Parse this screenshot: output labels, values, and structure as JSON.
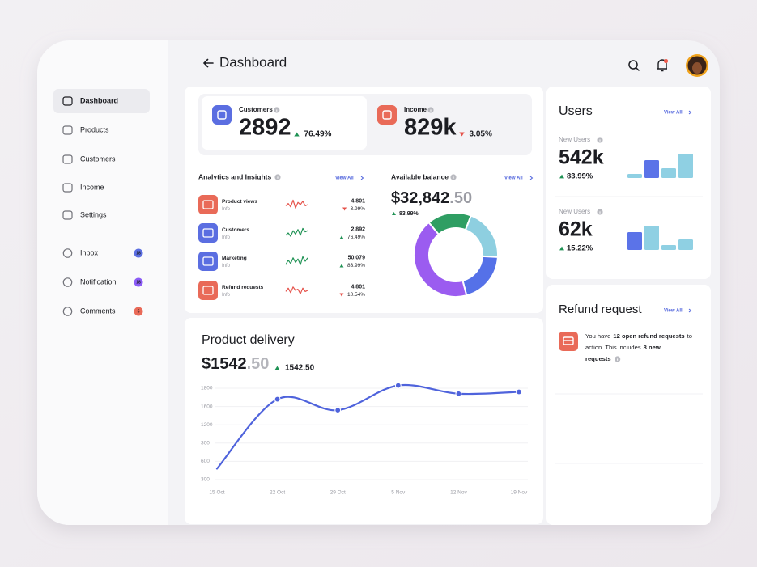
{
  "header": {
    "title": "Dashboard"
  },
  "sidebar": {
    "nav": [
      {
        "label": "Dashboard",
        "active": true
      },
      {
        "label": "Products"
      },
      {
        "label": "Customers"
      },
      {
        "label": "Income"
      },
      {
        "label": "Settings"
      }
    ],
    "messages": [
      {
        "label": "Inbox",
        "badge": 18,
        "color": "#5b6ee1"
      },
      {
        "label": "Notification",
        "badge": 18,
        "color": "#8b5cf6"
      },
      {
        "label": "Comments",
        "badge": 5,
        "color": "#e96a58"
      }
    ]
  },
  "kpis": [
    {
      "label": "Customers",
      "value": 2892,
      "change": "76.49%",
      "trend": "up",
      "color": "#5b6ee1"
    },
    {
      "label": "Income",
      "value": "829k",
      "change": "3.05%",
      "trend": "down",
      "color": "#e96a58"
    }
  ],
  "analytics": {
    "title": "Analytics and Insights",
    "link": "View All",
    "rows": [
      {
        "name": "Product views",
        "sub": "Info",
        "value": "4.801",
        "change": "3.99%",
        "trend": "down",
        "color": "#e96a58",
        "spark": [
          4,
          6,
          3,
          9,
          2,
          7,
          5,
          8,
          4,
          5
        ],
        "ylim": [
          0,
          10
        ]
      },
      {
        "name": "Customers",
        "sub": "Info",
        "value": "2.892",
        "change": "76.49%",
        "trend": "up",
        "color": "#5b6ee1",
        "spark": [
          3,
          5,
          2,
          7,
          4,
          8,
          3,
          9,
          6,
          7
        ],
        "ylim": [
          0,
          10
        ]
      },
      {
        "name": "Marketing",
        "sub": "Info",
        "value": "50.079",
        "change": "83.99%",
        "trend": "up",
        "color": "#5b6ee1",
        "spark": [
          2,
          6,
          3,
          8,
          4,
          7,
          2,
          9,
          5,
          8
        ],
        "ylim": [
          0,
          10
        ]
      },
      {
        "name": "Refund requests",
        "sub": "Info",
        "value": "4.801",
        "change": "10.54%",
        "trend": "down",
        "color": "#e96a58",
        "spark": [
          4,
          7,
          3,
          8,
          5,
          6,
          2,
          7,
          4,
          5
        ],
        "ylim": [
          0,
          10
        ]
      }
    ]
  },
  "balance": {
    "title": "Available balance",
    "link": "View All",
    "amount": "$32,842",
    "cents": ".50",
    "change": "83.99%",
    "trend": "up",
    "donut": {
      "type": "pie",
      "values": [
        17,
        20,
        20,
        43
      ],
      "colors": [
        "#2f9e63",
        "#8ecfe0",
        "#5571e8",
        "#9b5cf0"
      ]
    }
  },
  "users": {
    "title": "Users",
    "link": "View All",
    "groups": [
      {
        "label": "New Users",
        "value": "542k",
        "change": "83.99%",
        "trend": "up",
        "bars": [
          5,
          22,
          12,
          30
        ],
        "colors": [
          "#8fd0e3",
          "#5b73e8",
          "#8fd0e3",
          "#8fd0e3"
        ],
        "ylim": [
          0,
          30
        ]
      },
      {
        "label": "New Users",
        "value": "62k",
        "change": "15.22%",
        "trend": "up",
        "bars": [
          22,
          30,
          6,
          13
        ],
        "colors": [
          "#5b73e8",
          "#8fd0e3",
          "#8fd0e3",
          "#8fd0e3"
        ],
        "ylim": [
          0,
          30
        ]
      }
    ]
  },
  "refund": {
    "title": "Refund request",
    "link": "View All",
    "lines": [
      [
        {
          "text": "You have"
        },
        {
          "text": "12 open refund requests",
          "bold": true
        },
        {
          "text": "to"
        }
      ],
      [
        {
          "text": "action. This includes"
        },
        {
          "text": "8 new",
          "bold": true
        }
      ],
      [
        {
          "text": "requests",
          "bold": true
        }
      ]
    ]
  },
  "delivery": {
    "title": "Product delivery",
    "amount": "$1542",
    "cents": ".50",
    "change": "1542.50",
    "trend": "up",
    "chart": {
      "type": "line",
      "color": "#4f63dc",
      "categories": [
        "15 Oct",
        "22 Oct",
        "29 Oct",
        "5 Nov",
        "12 Nov",
        "19 Nov"
      ],
      "values": [
        0.6,
        4.4,
        3.8,
        5.15,
        4.7,
        4.8
      ],
      "ylim": [
        0,
        5
      ],
      "y_labels": [
        "1800",
        "1600",
        "1200",
        "300",
        "600",
        "300"
      ],
      "grid": true
    }
  }
}
